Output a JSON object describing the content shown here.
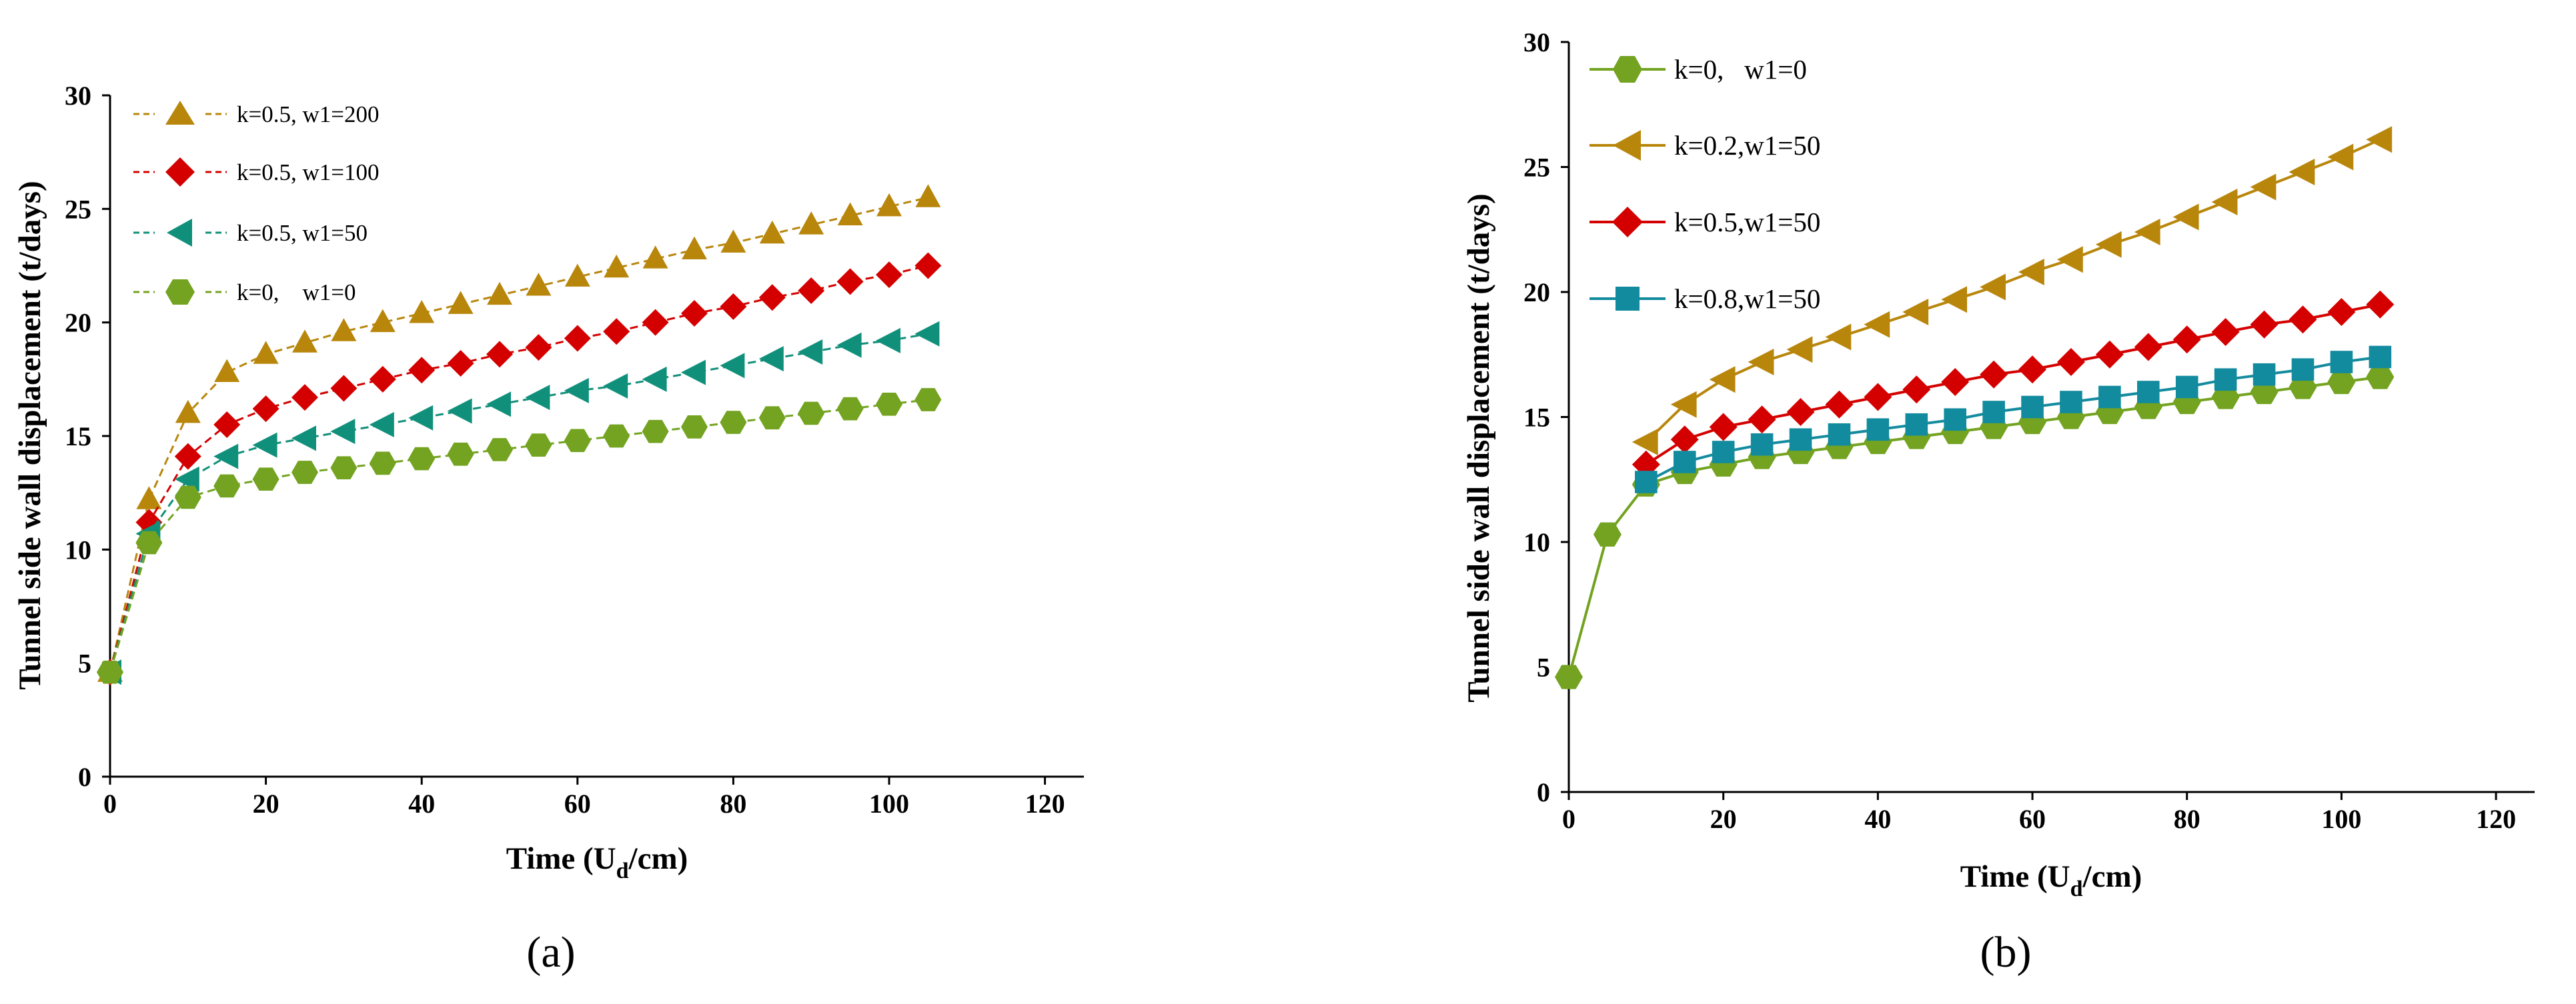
{
  "colors": {
    "gold": "#B8860B",
    "red": "#D40000",
    "teal": "#10907A",
    "blue_teal": "#138B9E",
    "green": "#73A320",
    "axis": "#000000"
  },
  "chart_data": [
    {
      "type": "line",
      "panel_label": "(a)",
      "xlabel": "Time (U",
      "xlabel_sub": "d",
      "xlabel_end": "/cm)",
      "ylabel": "Tunnel side wall displacement (t/days)",
      "xlim": [
        0,
        125
      ],
      "ylim": [
        0,
        30
      ],
      "xticks": [
        0,
        20,
        40,
        60,
        80,
        100,
        120
      ],
      "yticks": [
        0,
        5,
        10,
        15,
        20,
        25,
        30
      ],
      "x": [
        0,
        5,
        10,
        15,
        20,
        25,
        30,
        35,
        40,
        45,
        50,
        55,
        60,
        65,
        70,
        75,
        80,
        85,
        90,
        95,
        100,
        105
      ],
      "series": [
        {
          "name": "k=0.5, w1=200",
          "marker": "triangle-up",
          "line": "dashed",
          "color": "#B8860B",
          "values": [
            4.6,
            12.2,
            16.0,
            17.8,
            18.6,
            19.1,
            19.6,
            20.0,
            20.4,
            20.8,
            21.2,
            21.6,
            22.0,
            22.4,
            22.8,
            23.2,
            23.5,
            23.9,
            24.3,
            24.7,
            25.1,
            25.5
          ]
        },
        {
          "name": "k=0.5, w1=100",
          "marker": "diamond",
          "line": "dashed",
          "color": "#D40000",
          "values": [
            4.6,
            11.2,
            14.1,
            15.5,
            16.2,
            16.7,
            17.1,
            17.5,
            17.9,
            18.2,
            18.6,
            18.9,
            19.3,
            19.6,
            20.0,
            20.4,
            20.7,
            21.1,
            21.4,
            21.8,
            22.1,
            22.5
          ]
        },
        {
          "name": "k=0.5, w1=50",
          "marker": "triangle-left",
          "line": "dashed",
          "color": "#10907A",
          "values": [
            4.6,
            10.7,
            13.1,
            14.1,
            14.6,
            14.9,
            15.2,
            15.5,
            15.8,
            16.1,
            16.4,
            16.7,
            17.0,
            17.2,
            17.5,
            17.8,
            18.1,
            18.4,
            18.7,
            19.0,
            19.2,
            19.5
          ]
        },
        {
          "name": "k=0,    w1=0",
          "marker": "hexagon",
          "line": "dashed",
          "color": "#73A320",
          "values": [
            4.6,
            10.3,
            12.3,
            12.8,
            13.1,
            13.4,
            13.6,
            13.8,
            14.0,
            14.2,
            14.4,
            14.6,
            14.8,
            15.0,
            15.2,
            15.4,
            15.6,
            15.8,
            16.0,
            16.2,
            16.4,
            16.6
          ]
        }
      ]
    },
    {
      "type": "line",
      "panel_label": "(b)",
      "xlabel": "Time (U",
      "xlabel_sub": "d",
      "xlabel_end": "/cm)",
      "ylabel": "Tunnel side wall displacement (t/days)",
      "xlim": [
        0,
        125
      ],
      "ylim": [
        0,
        30
      ],
      "xticks": [
        0,
        20,
        40,
        60,
        80,
        100,
        120
      ],
      "yticks": [
        0,
        5,
        10,
        15,
        20,
        25,
        30
      ],
      "series": [
        {
          "name": "k=0,   w1=0",
          "marker": "hexagon",
          "line": "solid",
          "color": "#73A320",
          "x": [
            0,
            5,
            10,
            15,
            20,
            25,
            30,
            35,
            40,
            45,
            50,
            55,
            60,
            65,
            70,
            75,
            80,
            85,
            90,
            95,
            100,
            105
          ],
          "values": [
            4.6,
            10.3,
            12.3,
            12.8,
            13.1,
            13.4,
            13.6,
            13.8,
            14.0,
            14.2,
            14.4,
            14.6,
            14.8,
            15.0,
            15.2,
            15.4,
            15.6,
            15.8,
            16.0,
            16.2,
            16.4,
            16.6
          ]
        },
        {
          "name": "k=0.2,w1=50",
          "marker": "triangle-left",
          "line": "solid",
          "color": "#B8860B",
          "x": [
            10,
            15,
            20,
            25,
            30,
            35,
            40,
            45,
            50,
            55,
            60,
            65,
            70,
            75,
            80,
            85,
            90,
            95,
            100,
            105
          ],
          "values": [
            14.0,
            15.5,
            16.5,
            17.2,
            17.7,
            18.2,
            18.7,
            19.2,
            19.7,
            20.2,
            20.8,
            21.3,
            21.9,
            22.4,
            23.0,
            23.6,
            24.2,
            24.8,
            25.4,
            26.1
          ]
        },
        {
          "name": "k=0.5,w1=50",
          "marker": "diamond",
          "line": "solid",
          "color": "#D40000",
          "x": [
            10,
            15,
            20,
            25,
            30,
            35,
            40,
            45,
            50,
            55,
            60,
            65,
            70,
            75,
            80,
            85,
            90,
            95,
            100,
            105
          ],
          "values": [
            13.1,
            14.1,
            14.6,
            14.9,
            15.2,
            15.5,
            15.8,
            16.1,
            16.4,
            16.7,
            16.9,
            17.2,
            17.5,
            17.8,
            18.1,
            18.4,
            18.7,
            18.9,
            19.2,
            19.5
          ]
        },
        {
          "name": "k=0.8,w1=50",
          "marker": "square",
          "line": "solid",
          "color": "#138B9E",
          "x": [
            10,
            15,
            20,
            25,
            30,
            35,
            40,
            45,
            50,
            55,
            60,
            65,
            70,
            75,
            80,
            85,
            90,
            95,
            100,
            105
          ],
          "values": [
            12.4,
            13.2,
            13.6,
            13.9,
            14.1,
            14.3,
            14.5,
            14.7,
            14.9,
            15.2,
            15.4,
            15.6,
            15.8,
            16.0,
            16.2,
            16.5,
            16.7,
            16.9,
            17.2,
            17.4
          ]
        }
      ]
    }
  ]
}
